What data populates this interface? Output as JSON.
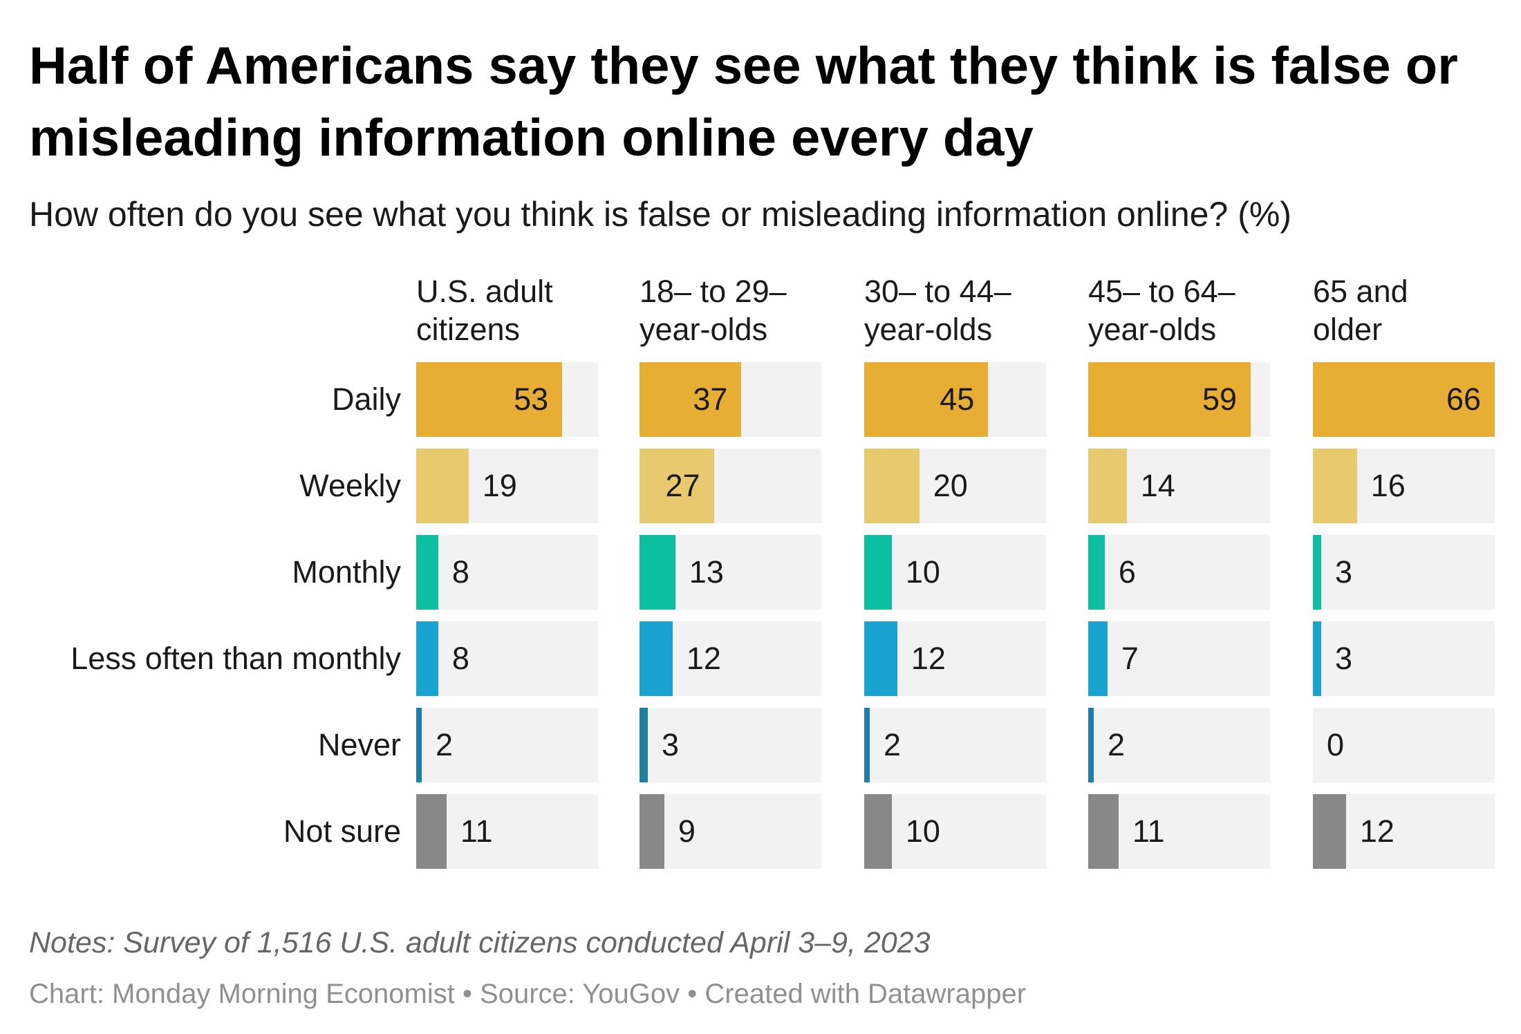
{
  "header": {
    "title": "Half of Americans say they see what they think is false or misleading information online every day",
    "subtitle": "How often do you see what you think is false or misleading information online? (%)"
  },
  "footer": {
    "notes": "Notes: Survey of 1,516 U.S. adult citizens conducted April 3–9, 2023",
    "credits": "Chart: Monday Morning Economist • Source: YouGov • Created with Datawrapper"
  },
  "colors": {
    "Daily": "#e8ad33",
    "Weekly": "#e8c96d",
    "Monthly": "#0cbfa0",
    "Less often than monthly": "#19a3d1",
    "Never": "#1d7fa3",
    "Not sure": "#888888",
    "background": "#f2f2f2"
  },
  "chart_data": {
    "type": "bar",
    "title": "Half of Americans say they see what they think is false or misleading information online every day",
    "subtitle": "How often do you see what you think is false or misleading information online? (%)",
    "orientation": "horizontal",
    "layout": "small-multiples",
    "xlim": [
      0,
      66
    ],
    "categories": [
      "Daily",
      "Weekly",
      "Monthly",
      "Less often than monthly",
      "Never",
      "Not sure"
    ],
    "panels": [
      {
        "name_lines": [
          "U.S. adult",
          "citizens"
        ],
        "values": [
          53,
          19,
          8,
          8,
          2,
          11
        ]
      },
      {
        "name_lines": [
          "18– to 29–",
          "year-olds"
        ],
        "values": [
          37,
          27,
          13,
          12,
          3,
          9
        ]
      },
      {
        "name_lines": [
          "30– to 44–",
          "year-olds"
        ],
        "values": [
          45,
          20,
          10,
          12,
          2,
          10
        ]
      },
      {
        "name_lines": [
          "45– to 64–",
          "year-olds"
        ],
        "values": [
          59,
          14,
          6,
          7,
          2,
          11
        ]
      },
      {
        "name_lines": [
          "65 and",
          "older"
        ],
        "values": [
          66,
          16,
          3,
          3,
          0,
          12
        ]
      }
    ]
  }
}
